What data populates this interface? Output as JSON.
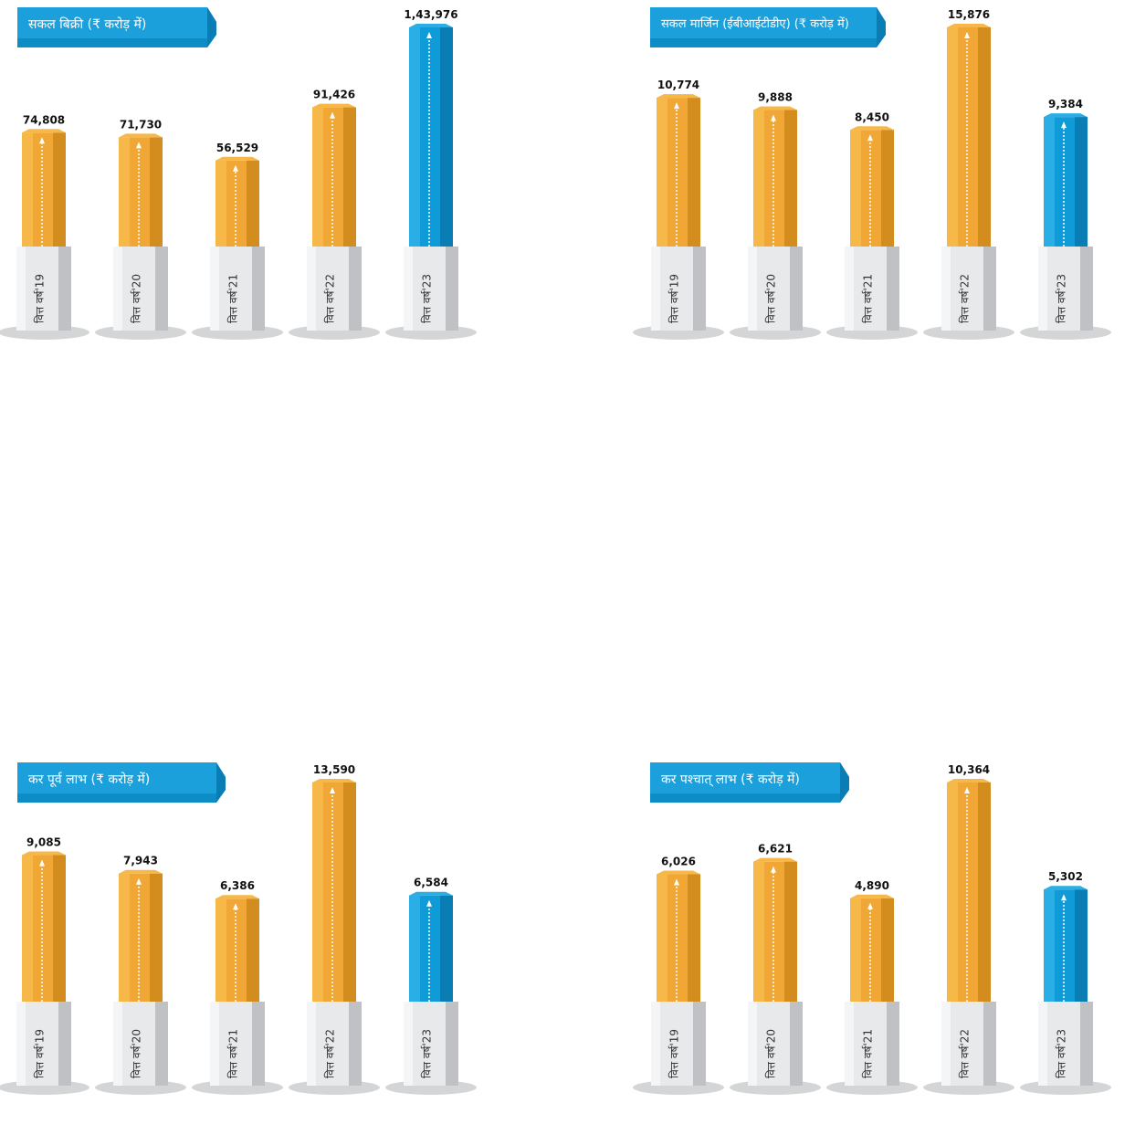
{
  "colors": {
    "orange_light": "#F7B84A",
    "orange_mid": "#F0A735",
    "orange_dark": "#D38D1F",
    "blue_light": "#29AEE5",
    "blue_mid": "#0E9BD8",
    "blue_dark": "#0A7DB5",
    "base_face": "#E8E9EB",
    "base_side": "#BFC1C4",
    "banner": "#1CA0DC",
    "value_text": "#111111"
  },
  "chart_data": [
    {
      "type": "bar",
      "title": "सकल बिक्री (₹ करोड़ में)",
      "categories": [
        "वित्त वर्ष'19",
        "वित्त वर्ष'20",
        "वित्त वर्ष'21",
        "वित्त वर्ष'22",
        "वित्त वर्ष'23"
      ],
      "values": [
        74808,
        71730,
        56529,
        91426,
        143976
      ],
      "value_labels": [
        "74,808",
        "71,730",
        "56,529",
        "91,426",
        "1,43,976"
      ],
      "highlight_index": 4,
      "xlabel": "",
      "ylabel": ""
    },
    {
      "type": "bar",
      "title": "सकल मार्जिन (ईबीआईटीडीए) (₹ करोड़ में)",
      "categories": [
        "वित्त वर्ष'19",
        "वित्त वर्ष'20",
        "वित्त वर्ष'21",
        "वित्त वर्ष'22",
        "वित्त वर्ष'23"
      ],
      "values": [
        10774,
        9888,
        8450,
        15876,
        9384
      ],
      "value_labels": [
        "10,774",
        "9,888",
        "8,450",
        "15,876",
        "9,384"
      ],
      "highlight_index": 4,
      "xlabel": "",
      "ylabel": ""
    },
    {
      "type": "bar",
      "title": "कर पूर्व लाभ (₹ करोड़ में)",
      "categories": [
        "वित्त वर्ष'19",
        "वित्त वर्ष'20",
        "वित्त वर्ष'21",
        "वित्त वर्ष'22",
        "वित्त वर्ष'23"
      ],
      "values": [
        9085,
        7943,
        6386,
        13590,
        6584
      ],
      "value_labels": [
        "9,085",
        "7,943",
        "6,386",
        "13,590",
        "6,584"
      ],
      "highlight_index": 4,
      "xlabel": "",
      "ylabel": ""
    },
    {
      "type": "bar",
      "title": "कर पश्चात् लाभ (₹ करोड़ में)",
      "categories": [
        "वित्त वर्ष'19",
        "वित्त वर्ष'20",
        "वित्त वर्ष'21",
        "वित्त वर्ष'22",
        "वित्त वर्ष'23"
      ],
      "values": [
        6026,
        6621,
        4890,
        10364,
        5302
      ],
      "value_labels": [
        "6,026",
        "6,621",
        "4,890",
        "10,364",
        "5,302"
      ],
      "highlight_index": 4,
      "xlabel": "",
      "ylabel": ""
    }
  ]
}
